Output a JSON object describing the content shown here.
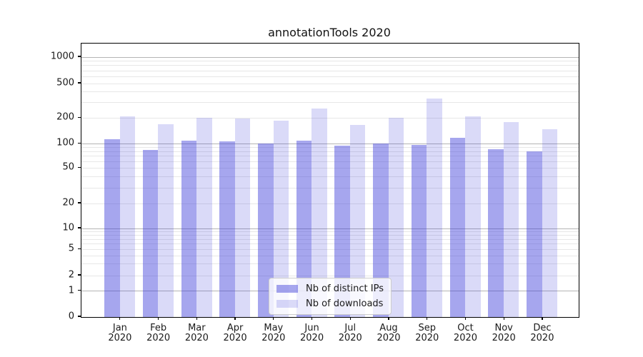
{
  "chart_data": {
    "type": "bar",
    "title": "annotationTools 2020",
    "xlabel": "",
    "ylabel": "",
    "year_label": "2020",
    "categories": [
      "Jan",
      "Feb",
      "Mar",
      "Apr",
      "May",
      "Jun",
      "Jul",
      "Aug",
      "Sep",
      "Oct",
      "Nov",
      "Dec"
    ],
    "series": [
      {
        "name": "Nb of distinct IPs",
        "color": "rgba(58,58,217,0.45)",
        "values": [
          112,
          84,
          108,
          106,
          100,
          109,
          95,
          100,
          96,
          117,
          85,
          80
        ]
      },
      {
        "name": "Nb of downloads",
        "color": "rgba(58,58,217,0.19)",
        "values": [
          208,
          170,
          201,
          198,
          186,
          258,
          165,
          201,
          335,
          207,
          179,
          148
        ]
      }
    ],
    "y_axis": {
      "scale": "symlog",
      "ylim": [
        0,
        1450
      ],
      "tick_values": [
        0,
        1,
        2,
        5,
        10,
        20,
        50,
        100,
        200,
        500,
        1000
      ],
      "tick_labels": [
        "0",
        "1",
        "2",
        "5",
        "10",
        "20",
        "50",
        "100",
        "200",
        "500",
        "1000"
      ],
      "scale_anchor_fractions": [
        [
          0,
          0.0
        ],
        [
          1,
          0.0948
        ],
        [
          2,
          0.1514
        ],
        [
          5,
          0.2472
        ],
        [
          10,
          0.3238
        ],
        [
          20,
          0.4151
        ],
        [
          50,
          0.5449
        ],
        [
          100,
          0.6337
        ],
        [
          200,
          0.7277
        ],
        [
          500,
          0.8538
        ],
        [
          1000,
          0.9504
        ]
      ]
    },
    "grid": {
      "enabled": true,
      "major_values": [
        1,
        10,
        100,
        1000
      ],
      "minor_values": [
        2,
        3,
        4,
        5,
        6,
        7,
        8,
        9,
        20,
        30,
        40,
        50,
        60,
        70,
        80,
        90,
        200,
        300,
        400,
        500,
        600,
        700,
        800,
        900
      ],
      "major_color": "#b4b4b4",
      "minor_color": "#e7e7e7"
    },
    "legend": {
      "position": "lower center",
      "items": [
        "Nb of distinct IPs",
        "Nb of downloads"
      ]
    },
    "colors": {
      "background": "#ffffff",
      "spine": "#000000",
      "text": "#1a1a1a",
      "bar_ips": "rgba(58,58,217,0.45)",
      "bar_downloads": "rgba(58,58,217,0.19)"
    }
  }
}
